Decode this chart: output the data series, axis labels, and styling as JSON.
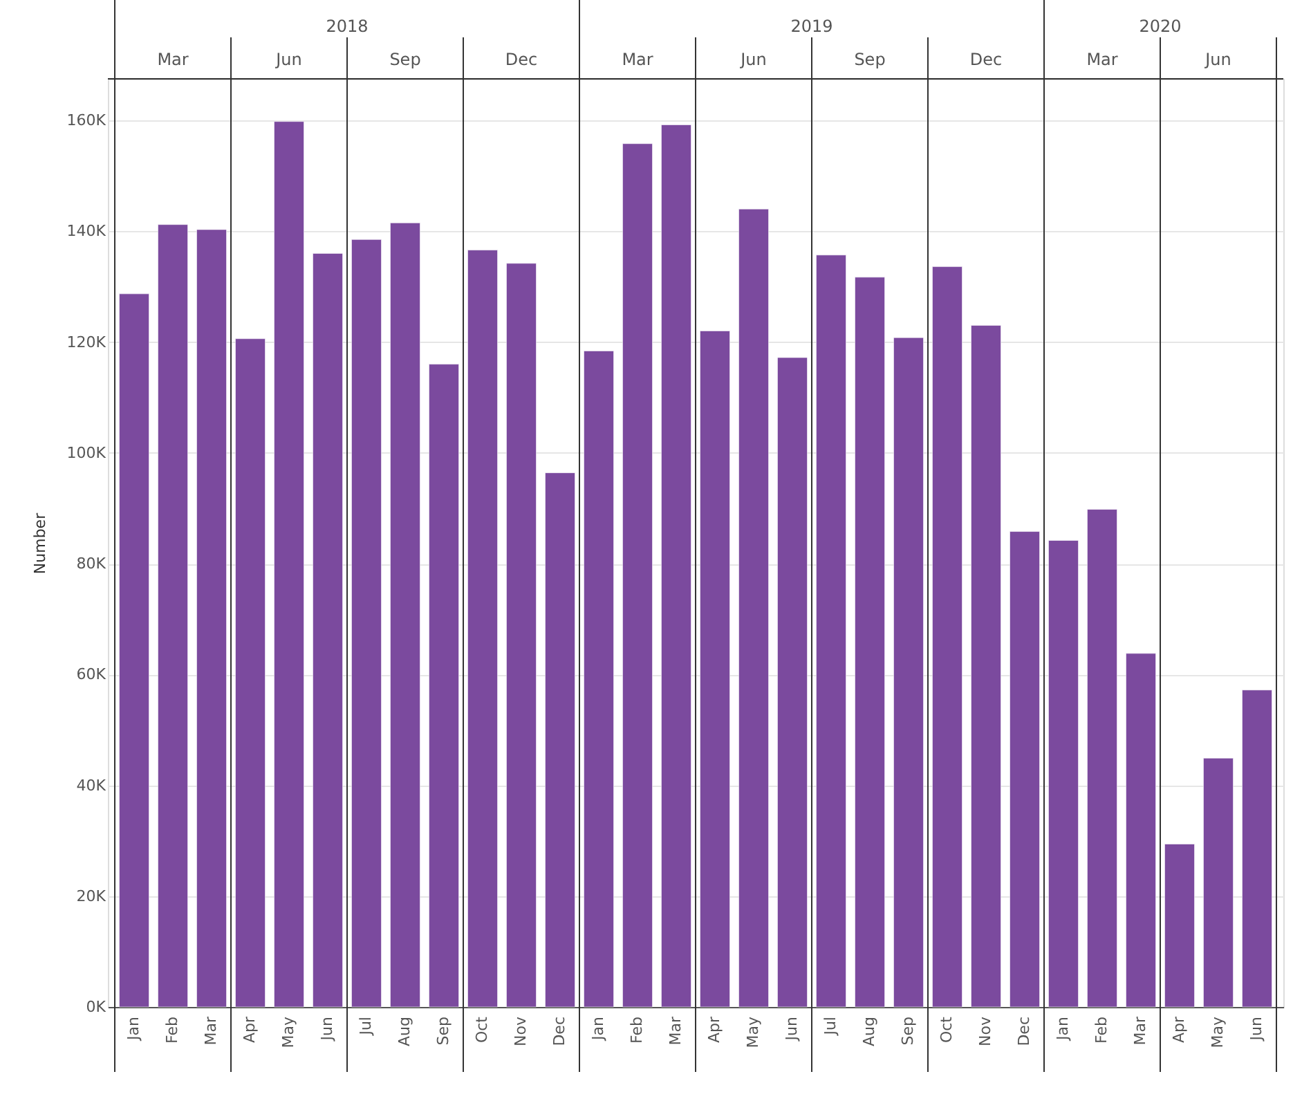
{
  "chart_data": {
    "type": "bar",
    "ylabel": "Number",
    "categories": [
      "Jan",
      "Feb",
      "Mar",
      "Apr",
      "May",
      "Jun",
      "Jul",
      "Aug",
      "Sep",
      "Oct",
      "Nov",
      "Dec",
      "Jan",
      "Feb",
      "Mar",
      "Apr",
      "May",
      "Jun",
      "Jul",
      "Aug",
      "Sep",
      "Oct",
      "Nov",
      "Dec",
      "Jan",
      "Feb",
      "Mar",
      "Apr",
      "May",
      "Jun"
    ],
    "series": [
      {
        "color": "#7b4a9e",
        "values": [
          128700,
          141200,
          140300,
          120600,
          159800,
          136000,
          138500,
          141500,
          116000,
          136600,
          134200,
          96400,
          118400,
          155800,
          159200,
          122000,
          144000,
          117200,
          135700,
          131700,
          120800,
          133600,
          123000,
          85800,
          84200,
          89800,
          63800,
          29400,
          44900,
          57200
        ]
      }
    ],
    "annotations": [
      "2018",
      "2019",
      "2020",
      "Mar",
      "Jun",
      "Sep",
      "Dec",
      "Mar",
      "Jun",
      "Sep",
      "Dec",
      "Mar",
      "Jun"
    ],
    "ylim": [
      0,
      167500
    ],
    "yticks": [
      {
        "value": 0,
        "label": "0K"
      },
      {
        "value": 20000,
        "label": "20K"
      },
      {
        "value": 40000,
        "label": "40K"
      },
      {
        "value": 60000,
        "label": "60K"
      },
      {
        "value": 80000,
        "label": "80K"
      },
      {
        "value": 100000,
        "label": "100K"
      },
      {
        "value": 120000,
        "label": "120K"
      },
      {
        "value": 140000,
        "label": "140K"
      },
      {
        "value": 160000,
        "label": "160K"
      }
    ],
    "grid": "y"
  }
}
